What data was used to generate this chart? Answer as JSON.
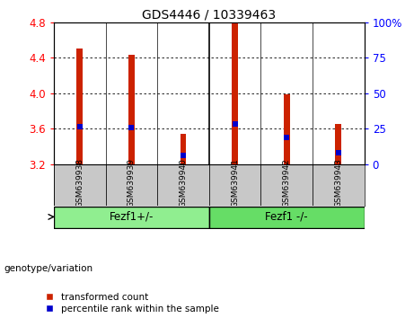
{
  "title": "GDS4446 / 10339463",
  "samples": [
    "GSM639938",
    "GSM639939",
    "GSM639940",
    "GSM639941",
    "GSM639942",
    "GSM639943"
  ],
  "red_values": [
    4.5,
    4.43,
    3.54,
    4.79,
    3.99,
    3.65
  ],
  "blue_values": [
    3.62,
    3.61,
    3.3,
    3.65,
    3.5,
    3.33
  ],
  "baseline": 3.2,
  "ylim_left": [
    3.2,
    4.8
  ],
  "ylim_right": [
    0,
    100
  ],
  "yticks_left": [
    3.2,
    3.6,
    4.0,
    4.4,
    4.8
  ],
  "yticks_right": [
    0,
    25,
    50,
    75,
    100
  ],
  "ytick_labels_right": [
    "0",
    "25",
    "50",
    "75",
    "100%"
  ],
  "groups": [
    {
      "label": "Fezf1+/-",
      "indices": [
        0,
        1,
        2
      ],
      "color": "#90ee90"
    },
    {
      "label": "Fezf1 -/-",
      "indices": [
        3,
        4,
        5
      ],
      "color": "#66dd66"
    }
  ],
  "group_label": "genotype/variation",
  "bar_color": "#cc2200",
  "blue_color": "#0000cc",
  "bar_width": 0.12,
  "legend_red": "transformed count",
  "legend_blue": "percentile rank within the sample",
  "blue_marker_size": 5
}
